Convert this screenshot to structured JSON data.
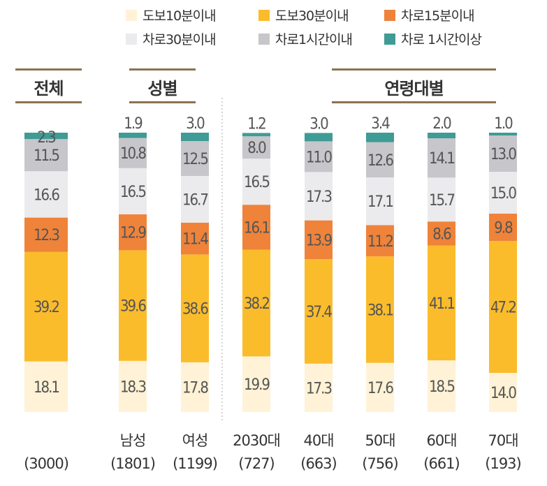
{
  "chart_data": {
    "type": "bar",
    "stacked": true,
    "unit": "%",
    "groups": [
      {
        "label": "전체",
        "categories": [
          0
        ]
      },
      {
        "label": "성별",
        "categories": [
          1,
          2
        ]
      },
      {
        "label": "연령대별",
        "categories": [
          3,
          4,
          5,
          6,
          7
        ]
      }
    ],
    "categories": [
      "",
      "남성",
      "여성",
      "2030대",
      "40대",
      "50대",
      "60대",
      "70대"
    ],
    "counts": [
      "(3000)",
      "(1801)",
      "(1199)",
      "(727)",
      "(663)",
      "(756)",
      "(661)",
      "(193)"
    ],
    "series": [
      {
        "name": "도보10분이내",
        "color": "#fff2d6",
        "values": [
          18.1,
          18.3,
          17.8,
          19.9,
          17.3,
          17.6,
          18.5,
          14.0
        ]
      },
      {
        "name": "도보30분이내",
        "color": "#fbbc2c",
        "values": [
          39.2,
          39.6,
          38.6,
          38.2,
          37.4,
          38.1,
          41.1,
          47.2
        ]
      },
      {
        "name": "차로15분이내",
        "color": "#ef833a",
        "values": [
          12.3,
          12.9,
          11.4,
          16.1,
          13.9,
          11.2,
          8.6,
          9.8
        ]
      },
      {
        "name": "차로30분이내",
        "color": "#ebebed",
        "values": [
          16.6,
          16.5,
          16.7,
          16.5,
          17.3,
          17.1,
          15.7,
          15.0
        ]
      },
      {
        "name": "차로1시간이내",
        "color": "#c6c6cb",
        "values": [
          11.5,
          10.8,
          12.5,
          8.0,
          11.0,
          12.6,
          14.1,
          13.0
        ]
      },
      {
        "name": "차로 1시간이상",
        "color": "#3f9b95",
        "values": [
          2.3,
          1.9,
          3.0,
          1.2,
          3.0,
          3.4,
          2.0,
          1.0
        ]
      }
    ],
    "ylim": [
      0,
      100
    ],
    "legend": "top-right"
  }
}
